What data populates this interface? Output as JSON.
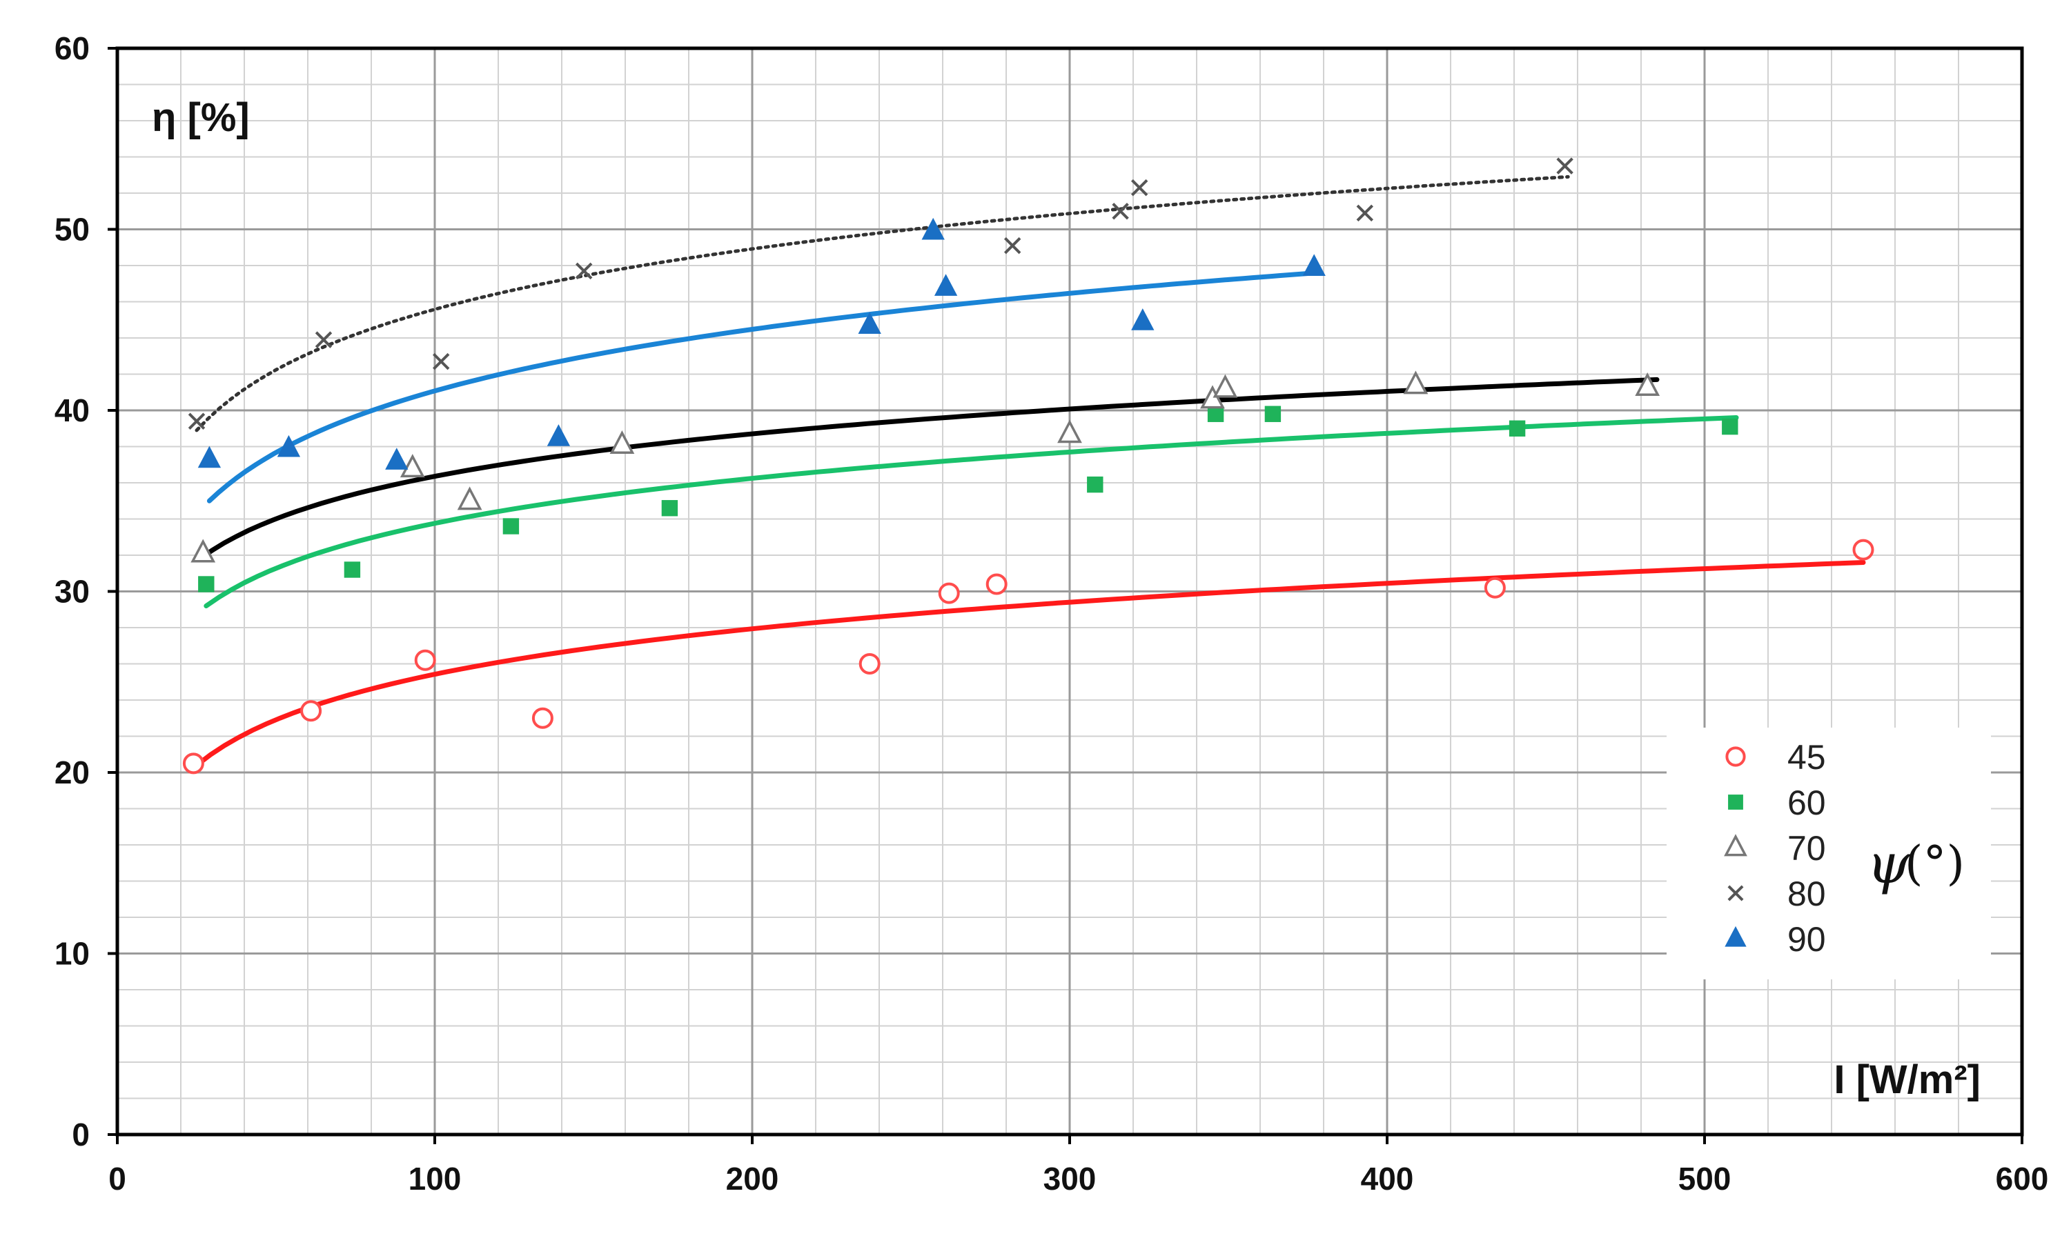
{
  "chart_data": {
    "type": "scatter",
    "title": "",
    "xlabel": "I [W/m²]",
    "ylabel": "η [%]",
    "xlim": [
      0,
      600
    ],
    "ylim": [
      0,
      60
    ],
    "x_ticks": [
      "0",
      "100",
      "200",
      "300",
      "400",
      "500",
      "600"
    ],
    "y_ticks": [
      "0",
      "10",
      "20",
      "30",
      "40",
      "50",
      "60"
    ],
    "grid": true,
    "legend": {
      "placement": "bottom-right",
      "title": "ψ",
      "unit": "(°)"
    },
    "series": [
      {
        "name": "45",
        "color": "#ff4d4d",
        "marker": "circle-open",
        "trend_color": "#ff1a1a",
        "trend": [
          [
            25,
            20.4
          ],
          [
            550,
            31.6
          ]
        ],
        "points": [
          [
            24,
            20.5
          ],
          [
            61,
            23.4
          ],
          [
            97,
            26.2
          ],
          [
            134,
            23.0
          ],
          [
            237,
            26.0
          ],
          [
            262,
            29.9
          ],
          [
            277,
            30.4
          ],
          [
            434,
            30.2
          ],
          [
            550,
            32.3
          ]
        ]
      },
      {
        "name": "60",
        "color": "#1fb35a",
        "marker": "square-filled",
        "trend_color": "#19c16b",
        "trend": [
          [
            28,
            29.2
          ],
          [
            510,
            39.6
          ]
        ],
        "points": [
          [
            28,
            30.4
          ],
          [
            74,
            31.2
          ],
          [
            124,
            33.6
          ],
          [
            174,
            34.6
          ],
          [
            308,
            35.9
          ],
          [
            346,
            39.8
          ],
          [
            364,
            39.8
          ],
          [
            441,
            39.0
          ],
          [
            508,
            39.1
          ]
        ]
      },
      {
        "name": "70",
        "color": "#777777",
        "marker": "triangle-open",
        "trend_color": "#000000",
        "trend": [
          [
            26,
            31.8
          ],
          [
            485,
            41.7
          ]
        ],
        "points": [
          [
            27,
            32.1
          ],
          [
            93,
            36.8
          ],
          [
            111,
            35.0
          ],
          [
            159,
            38.1
          ],
          [
            300,
            38.7
          ],
          [
            345,
            40.6
          ],
          [
            349,
            41.2
          ],
          [
            409,
            41.4
          ],
          [
            482,
            41.3
          ]
        ]
      },
      {
        "name": "80",
        "color": "#555555",
        "marker": "x",
        "trend_color": "#333333",
        "trend_style": "dotted",
        "trend": [
          [
            25,
            38.9
          ],
          [
            457,
            52.9
          ]
        ],
        "points": [
          [
            25,
            39.4
          ],
          [
            65,
            43.9
          ],
          [
            102,
            42.7
          ],
          [
            147,
            47.7
          ],
          [
            282,
            49.1
          ],
          [
            316,
            51.0
          ],
          [
            322,
            52.3
          ],
          [
            393,
            50.9
          ],
          [
            456,
            53.5
          ]
        ]
      },
      {
        "name": "90",
        "color": "#1a6fc4",
        "marker": "triangle-filled",
        "trend_color": "#1a84d6",
        "trend": [
          [
            29,
            35.0
          ],
          [
            378,
            47.6
          ]
        ],
        "points": [
          [
            29,
            37.3
          ],
          [
            54,
            37.9
          ],
          [
            88,
            37.2
          ],
          [
            139,
            38.5
          ],
          [
            237,
            44.7
          ],
          [
            257,
            49.9
          ],
          [
            261,
            46.8
          ],
          [
            323,
            44.9
          ],
          [
            377,
            47.9
          ]
        ]
      }
    ]
  }
}
